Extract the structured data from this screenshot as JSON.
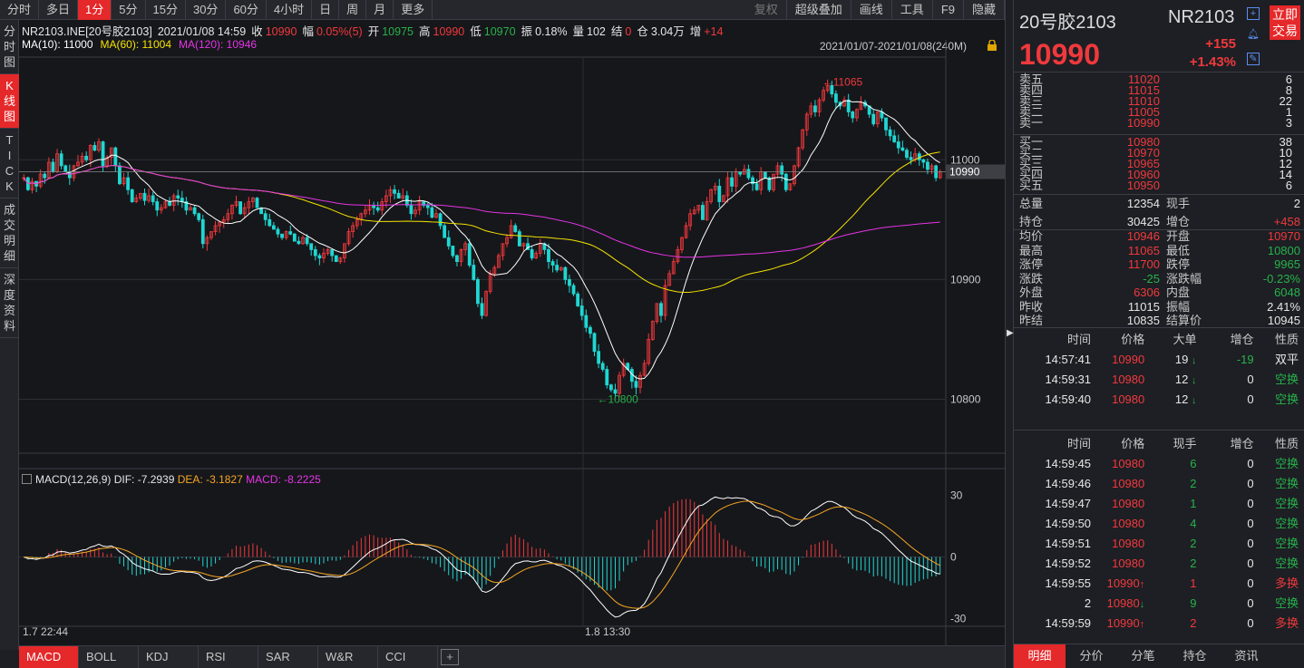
{
  "toolbar": {
    "periods": [
      "分时",
      "多日",
      "1分",
      "5分",
      "15分",
      "30分",
      "60分",
      "4小时",
      "日",
      "周",
      "月",
      "更多"
    ],
    "active_period": "1分",
    "right_buttons": [
      "复权",
      "超级叠加",
      "画线",
      "工具",
      "F9",
      "隐藏"
    ]
  },
  "left_tabs": [
    "分时图",
    "K线图",
    "TICK",
    "成交明细",
    "深度资料"
  ],
  "active_left_tab": "K线图",
  "chart_header": {
    "symbol": "NR2103.INE[20号胶2103]",
    "datetime": "2021/01/08 14:59",
    "close_label": "收",
    "close": "10990",
    "amp_label": "幅",
    "amp": "0.05%(5)",
    "open_label": "开",
    "open": "10975",
    "high_label": "高",
    "high": "10990",
    "low_label": "低",
    "low": "10970",
    "zhen_label": "振",
    "zhen": "0.18%",
    "vol_label": "量",
    "vol": "102",
    "settle_label": "结",
    "settle": "0",
    "oi_label": "仓",
    "oi": "3.04万",
    "inc_label": "增",
    "inc": "+14"
  },
  "ma_legend": [
    {
      "label": "MA(10): 11000",
      "color": "#ffffff"
    },
    {
      "label": "MA(60): 11004",
      "color": "#f5e400"
    },
    {
      "label": "MA(120): 10946",
      "color": "#e534e5"
    }
  ],
  "range_label": "2021/01/07-2021/01/08(240M)",
  "chart_data": {
    "type": "candlestick",
    "ylim": [
      10755,
      11085
    ],
    "y_ticks": [
      11000,
      10900,
      10800
    ],
    "current_price": "10990",
    "max_marker": "11065",
    "min_marker": "10800",
    "x_labels": [
      "1.7 22:44",
      "1.8 13:30"
    ],
    "macd_ticks": [
      "30",
      "0",
      "-30"
    ],
    "macd_ylim": [
      -32,
      32
    ],
    "closes": [
      10985,
      10975,
      10982,
      10978,
      10988,
      10985,
      10998,
      10990,
      11005,
      10995,
      10990,
      10985,
      10995,
      10998,
      11003,
      11000,
      11012,
      11008,
      11015,
      10995,
      11002,
      11010,
      10995,
      10980,
      10985,
      10975,
      10965,
      10968,
      10972,
      10966,
      10970,
      10965,
      10958,
      10960,
      10965,
      10962,
      10970,
      10968,
      10965,
      10958,
      10960,
      10955,
      10950,
      10930,
      10935,
      10940,
      10945,
      10948,
      10950,
      10955,
      10962,
      10965,
      10955,
      10960,
      10965,
      10968,
      10960,
      10955,
      10950,
      10945,
      10942,
      10938,
      10935,
      10940,
      10938,
      10932,
      10930,
      10935,
      10930,
      10925,
      10920,
      10918,
      10922,
      10925,
      10920,
      10915,
      10918,
      10930,
      10940,
      10945,
      10950,
      10955,
      10958,
      10962,
      10960,
      10958,
      10965,
      10970,
      10975,
      10972,
      10968,
      10970,
      10962,
      10955,
      10958,
      10965,
      10962,
      10960,
      10952,
      10955,
      10945,
      10935,
      10928,
      10920,
      10915,
      10925,
      10930,
      10912,
      10900,
      10880,
      10870,
      10890,
      10905,
      10910,
      10920,
      10930,
      10935,
      10945,
      10940,
      10928,
      10930,
      10925,
      10918,
      10922,
      10930,
      10925,
      10915,
      10912,
      10908,
      10910,
      10900,
      10895,
      10888,
      10878,
      10870,
      10860,
      10855,
      10840,
      10830,
      10825,
      10812,
      10808,
      10805,
      10820,
      10830,
      10825,
      10815,
      10810,
      10820,
      10830,
      10850,
      10865,
      10880,
      10870,
      10895,
      10905,
      10915,
      10925,
      10935,
      10945,
      10955,
      10958,
      10962,
      10950,
      10965,
      10975,
      10978,
      10965,
      10970,
      10985,
      10978,
      10990,
      10988,
      10992,
      10985,
      10980,
      10975,
      10990,
      10985,
      10975,
      10988,
      10995,
      10988,
      10975,
      10980,
      10995,
      11010,
      11025,
      11038,
      11045,
      11040,
      11050,
      11058,
      11062,
      11055,
      11048,
      11045,
      11050,
      11040,
      11035,
      11042,
      11048,
      11045,
      11038,
      11030,
      11040,
      11035,
      11025,
      11020,
      11015,
      11010,
      11008,
      11002,
      11000,
      11005,
      11000,
      10998,
      10992,
      10995,
      10985,
      10990
    ],
    "ma10_last": 11000,
    "ma60_last": 11004,
    "ma120_last": 10946
  },
  "macd": {
    "name": "MACD(12,26,9)",
    "dif_label": "DIF: -7.2939",
    "dea_label": "DEA: -3.1827",
    "macd_label": "MACD: -8.2225"
  },
  "bottom_tabs": [
    "MACD",
    "BOLL",
    "KDJ",
    "RSI",
    "SAR",
    "W&R",
    "CCI"
  ],
  "active_bottom_tab": "MACD",
  "quote": {
    "name": "20号胶2103",
    "code": "NR2103",
    "trade_label": "立即交易",
    "last": "10990",
    "change": "+155",
    "pct": "+1.43%"
  },
  "orderbook": {
    "asks": [
      [
        "卖五",
        "11020",
        "6"
      ],
      [
        "卖四",
        "11015",
        "8"
      ],
      [
        "卖三",
        "11010",
        "22"
      ],
      [
        "卖二",
        "11005",
        "1"
      ],
      [
        "卖一",
        "10990",
        "3"
      ]
    ],
    "bids": [
      [
        "买一",
        "10980",
        "38"
      ],
      [
        "买二",
        "10970",
        "10"
      ],
      [
        "买三",
        "10965",
        "12"
      ],
      [
        "买四",
        "10960",
        "14"
      ],
      [
        "买五",
        "10950",
        "6"
      ]
    ]
  },
  "stats1": [
    [
      "总量",
      "12354",
      "现手",
      "2"
    ],
    [
      "持仓",
      "30425",
      "增仓",
      "+458"
    ]
  ],
  "stats2": [
    [
      "均价",
      "10946",
      "开盘",
      "10970"
    ],
    [
      "最高",
      "11065",
      "最低",
      "10800"
    ],
    [
      "涨停",
      "11700",
      "跌停",
      "9965"
    ],
    [
      "涨跌",
      "-25",
      "涨跌幅",
      "-0.23%"
    ],
    [
      "外盘",
      "6306",
      "内盘",
      "6048"
    ],
    [
      "昨收",
      "11015",
      "振幅",
      "2.41%"
    ],
    [
      "昨结",
      "10835",
      "结算价",
      "10945"
    ]
  ],
  "big_trades": {
    "headers": [
      "时间",
      "价格",
      "大单",
      "增仓",
      "性质"
    ],
    "rows": [
      [
        "14:57:41",
        "10990",
        "19",
        "-19",
        "双平"
      ],
      [
        "14:59:31",
        "10980",
        "12",
        "0",
        "空换"
      ],
      [
        "14:59:40",
        "10980",
        "12",
        "0",
        "空换"
      ]
    ]
  },
  "ticks": {
    "headers": [
      "时间",
      "价格",
      "现手",
      "增仓",
      "性质"
    ],
    "rows": [
      [
        "14:59:45",
        "10980",
        "",
        "6",
        "0",
        "空换"
      ],
      [
        "14:59:46",
        "10980",
        "",
        "2",
        "0",
        "空换"
      ],
      [
        "14:59:47",
        "10980",
        "",
        "1",
        "0",
        "空换"
      ],
      [
        "14:59:50",
        "10980",
        "",
        "4",
        "0",
        "空换"
      ],
      [
        "14:59:51",
        "10980",
        "",
        "2",
        "0",
        "空换"
      ],
      [
        "14:59:52",
        "10980",
        "",
        "2",
        "0",
        "空换"
      ],
      [
        "14:59:55",
        "10990",
        "↑",
        "1",
        "0",
        "多换"
      ],
      [
        "2",
        "10980",
        "↓",
        "9",
        "0",
        "空换"
      ],
      [
        "14:59:59",
        "10990",
        "↑",
        "2",
        "0",
        "多换"
      ]
    ]
  },
  "right_tabs": [
    "明细",
    "分价",
    "分笔",
    "持仓",
    "资讯"
  ],
  "active_right_tab": "明细"
}
